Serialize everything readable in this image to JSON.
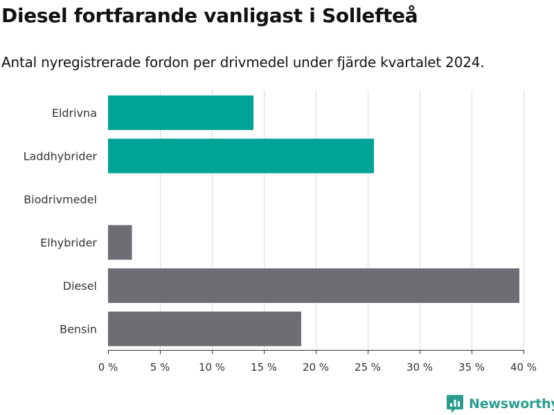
{
  "title": "Diesel fortfarande vanligast i Sollefteå",
  "subtitle": "Antal nyregistrerade fordon per drivmedel under fjärde kvartalet 2024.",
  "brand": {
    "name": "Newsworthy",
    "color": "#2a9d8f"
  },
  "colors": {
    "highlight": "#00a398",
    "default": "#6e6d73",
    "grid": "#d9d9d9",
    "axis": "#333333",
    "label": "#333333"
  },
  "chart_data": {
    "type": "bar",
    "orientation": "horizontal",
    "title": "Diesel fortfarande vanligast i Sollefteå",
    "subtitle": "Antal nyregistrerade fordon per drivmedel under fjärde kvartalet 2024.",
    "xlabel": "",
    "ylabel": "",
    "categories": [
      "Eldrivna",
      "Laddhybrider",
      "Biodrivmedel",
      "Elhybrider",
      "Diesel",
      "Bensin"
    ],
    "values": [
      14.0,
      25.6,
      0.0,
      2.3,
      39.6,
      18.6
    ],
    "highlighted": [
      true,
      true,
      false,
      false,
      false,
      false
    ],
    "unit": "%",
    "xlim": [
      0,
      40
    ],
    "xticks": [
      0,
      5,
      10,
      15,
      20,
      25,
      30,
      35,
      40
    ],
    "xtick_labels": [
      "0 %",
      "5 %",
      "10 %",
      "15 %",
      "20 %",
      "25 %",
      "30 %",
      "35 %",
      "40 %"
    ],
    "grid": true,
    "legend": "none"
  }
}
